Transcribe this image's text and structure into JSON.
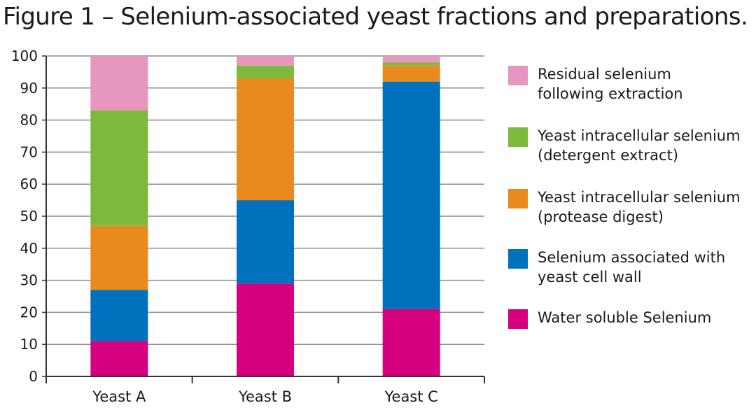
{
  "title": "Figure 1 – Selenium-associated yeast fractions and preparations.",
  "chart_data": {
    "type": "bar",
    "stacked": true,
    "categories": [
      "Yeast A",
      "Yeast B",
      "Yeast C"
    ],
    "ylim": [
      0,
      100
    ],
    "yticks": [
      0,
      10,
      20,
      30,
      40,
      50,
      60,
      70,
      80,
      90,
      100
    ],
    "grid": true,
    "legend_position": "right",
    "series": [
      {
        "name": "Water soluble Selenium",
        "color": "#d6007f",
        "values": [
          11,
          29,
          21
        ]
      },
      {
        "name": "Selenium associated with\nyeast cell wall",
        "color": "#0071bc",
        "values": [
          16,
          26,
          71
        ]
      },
      {
        "name": "Yeast intracellular selenium\n(protease digest)",
        "color": "#e88a1e",
        "values": [
          20,
          38,
          5
        ]
      },
      {
        "name": "Yeast intracellular selenium\n(detergent extract)",
        "color": "#7cb93c",
        "values": [
          36,
          4,
          1
        ]
      },
      {
        "name": "Residual selenium\nfollowing extraction",
        "color": "#e796bf",
        "values": [
          17,
          3,
          2
        ]
      }
    ],
    "legend_order": [
      4,
      3,
      2,
      1,
      0
    ]
  }
}
